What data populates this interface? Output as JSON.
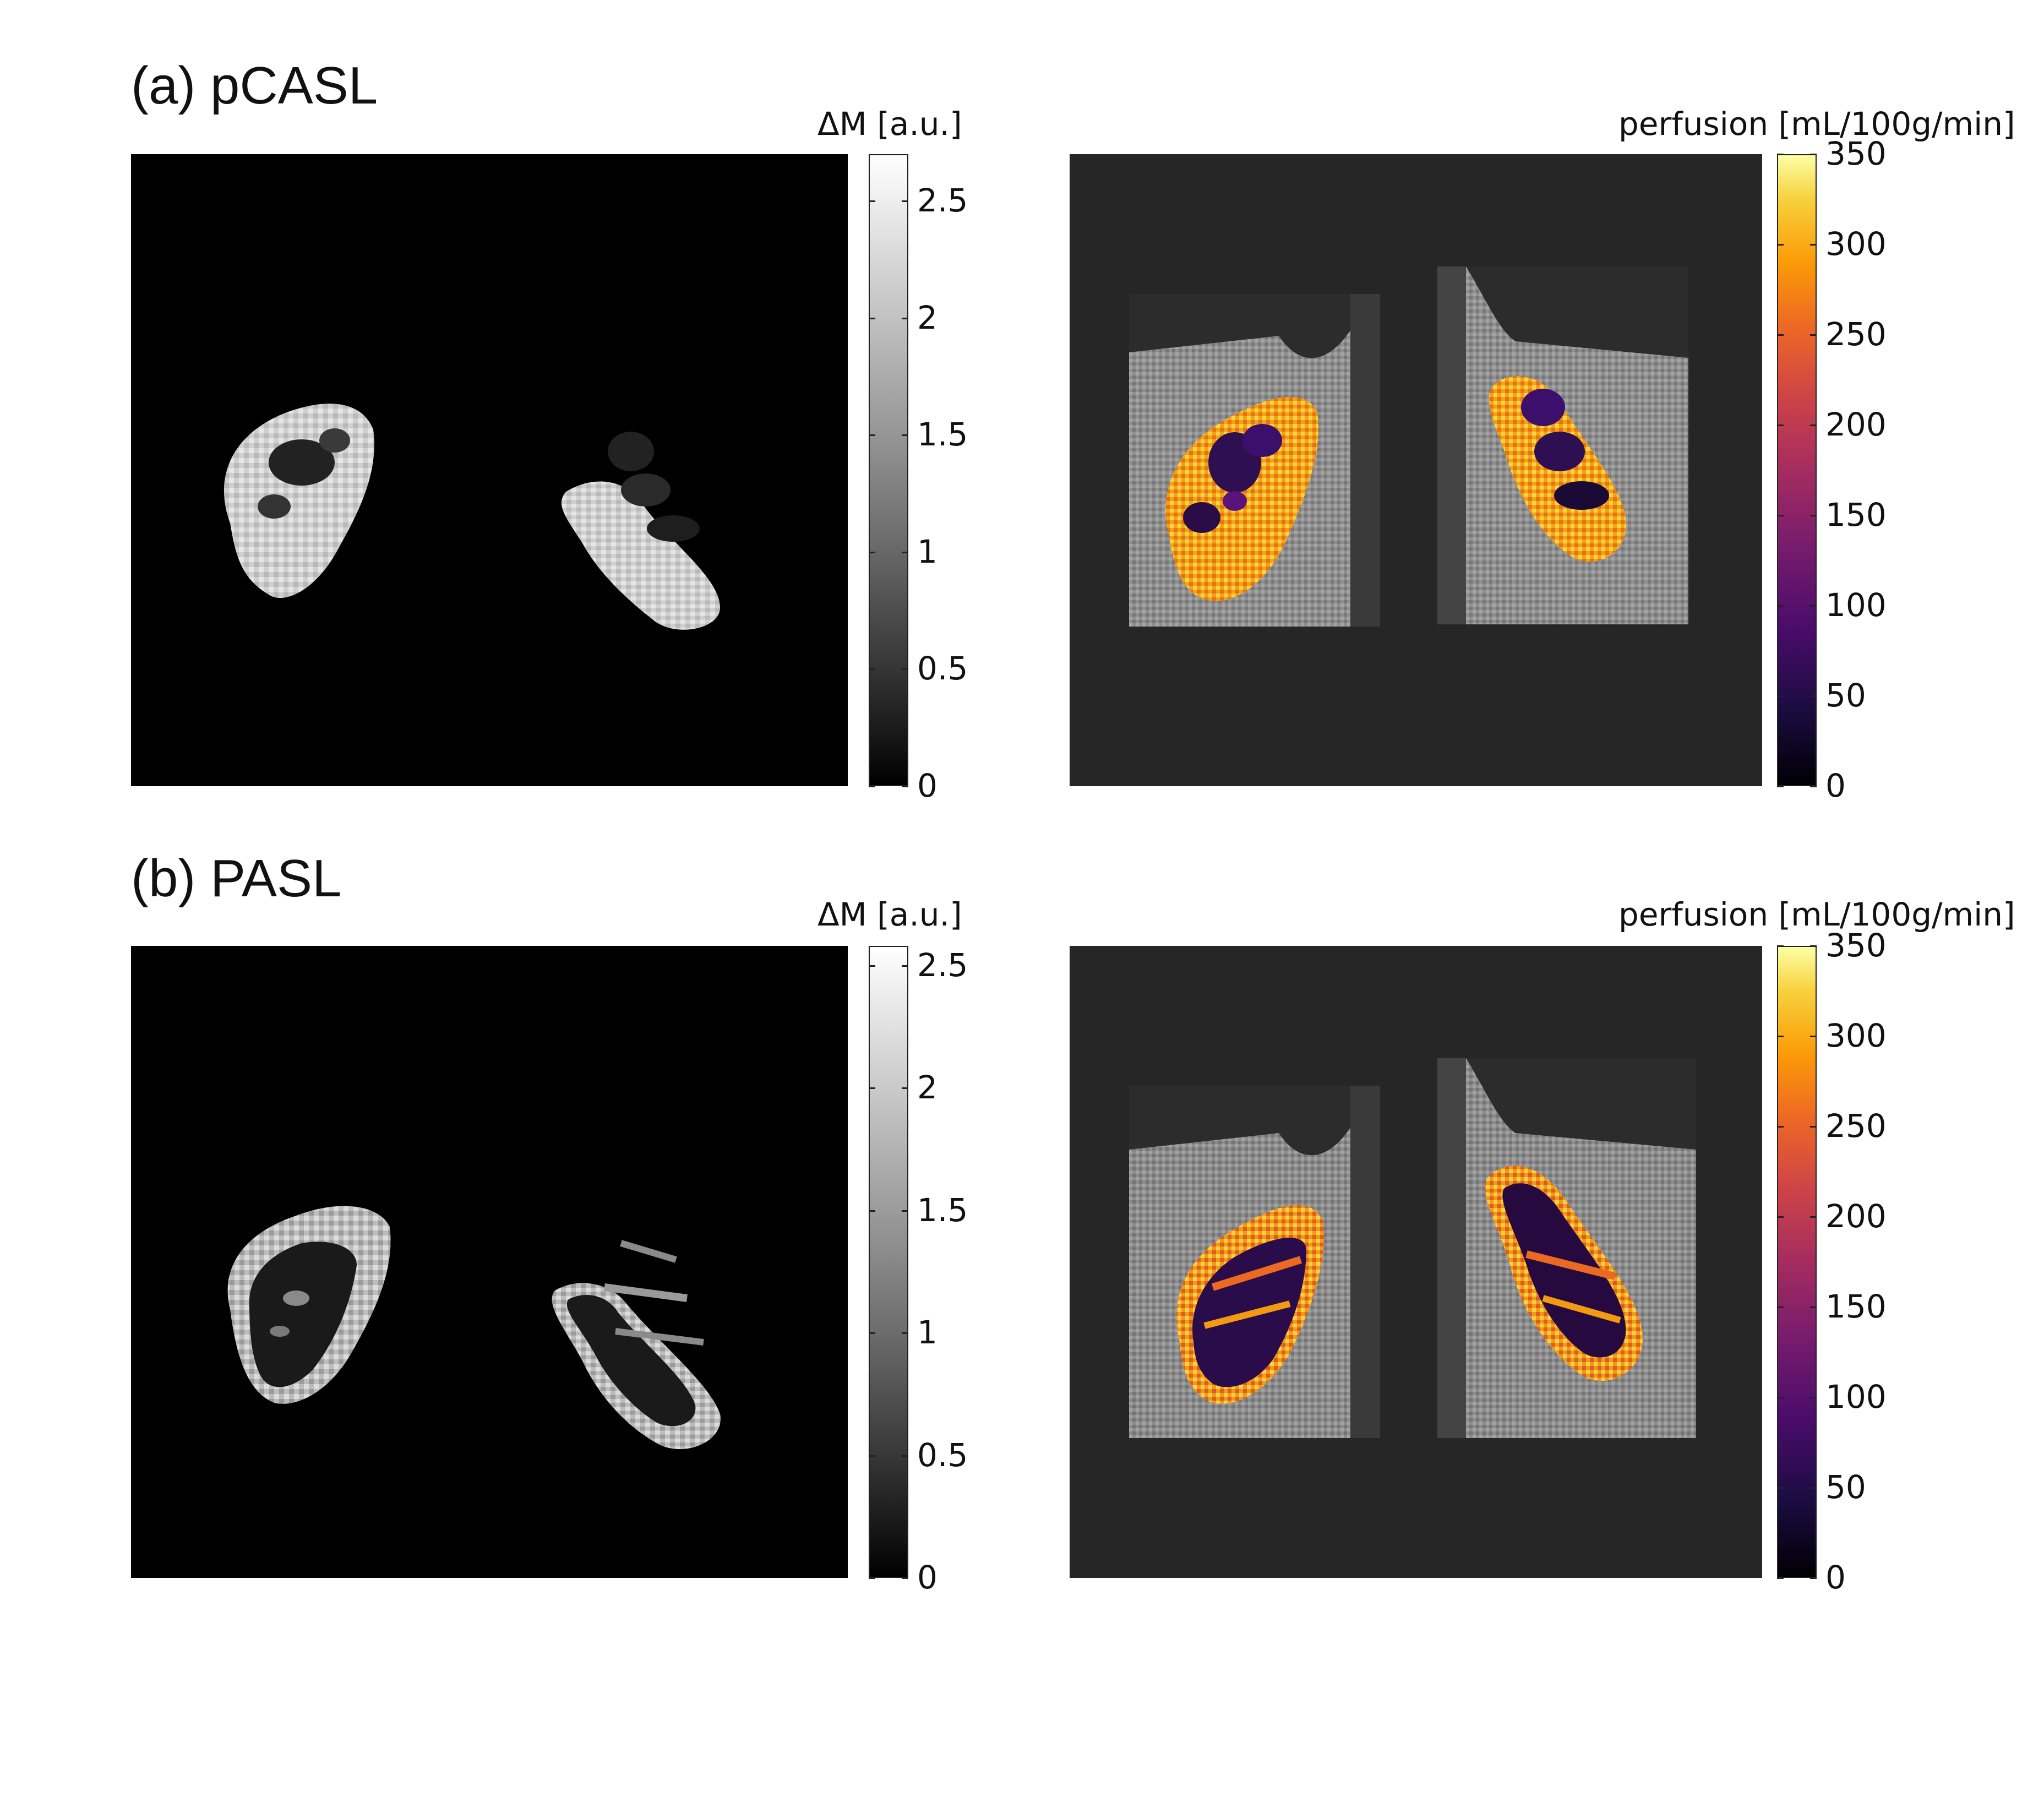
{
  "figure": {
    "rows": [
      {
        "title": "(a) pCASL",
        "left": {
          "colorbar_title": "ΔM [a.u.]",
          "colormap": "gray",
          "ticks": [
            "0",
            "0.5",
            "1",
            "1.5",
            "2",
            "2.5"
          ],
          "tick_values": [
            0,
            0.5,
            1,
            1.5,
            2,
            2.5
          ],
          "range": [
            0,
            2.7
          ]
        },
        "right": {
          "colorbar_title": "perfusion [mL/100g/min]",
          "colormap": "inferno",
          "ticks": [
            "0",
            "50",
            "100",
            "150",
            "200",
            "250",
            "300",
            "350"
          ],
          "tick_values": [
            0,
            50,
            100,
            150,
            200,
            250,
            300,
            350
          ],
          "range": [
            0,
            350
          ]
        }
      },
      {
        "title": "(b) PASL",
        "left": {
          "colorbar_title": "ΔM [a.u.]",
          "colormap": "gray",
          "ticks": [
            "0",
            "0.5",
            "1",
            "1.5",
            "2",
            "2.5"
          ],
          "tick_values": [
            0,
            0.5,
            1,
            1.5,
            2,
            2.5
          ],
          "range": [
            0,
            2.58
          ]
        },
        "right": {
          "colorbar_title": "perfusion [mL/100g/min]",
          "colormap": "inferno",
          "ticks": [
            "0",
            "50",
            "100",
            "150",
            "200",
            "250",
            "300",
            "350"
          ],
          "tick_values": [
            0,
            50,
            100,
            150,
            200,
            250,
            300,
            350
          ],
          "range": [
            0,
            350
          ]
        }
      }
    ],
    "colors": {
      "background": "#ffffff",
      "deltam_background": "#000000",
      "perfusion_background": "#262626"
    }
  }
}
